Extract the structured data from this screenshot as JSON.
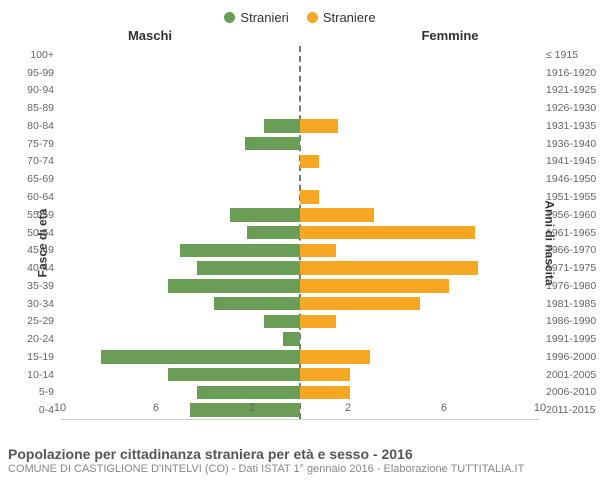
{
  "legend": {
    "male": "Stranieri",
    "female": "Straniere"
  },
  "headers": {
    "male": "Maschi",
    "female": "Femmine"
  },
  "axis_titles": {
    "left": "Fasce di età",
    "right": "Anni di nascita"
  },
  "colors": {
    "male": "#6a9e57",
    "female": "#f5a623",
    "background": "#ffffff",
    "grid": "#cccccc",
    "centerline": "#777777"
  },
  "chart": {
    "type": "population-pyramid",
    "xmax": 10,
    "xticks_left": [
      10,
      6,
      2
    ],
    "xticks_right": [
      2,
      6,
      10
    ],
    "age_bands": [
      {
        "age": "100+",
        "birth": "≤ 1915",
        "male": 0,
        "female": 0
      },
      {
        "age": "95-99",
        "birth": "1916-1920",
        "male": 0,
        "female": 0
      },
      {
        "age": "90-94",
        "birth": "1921-1925",
        "male": 0,
        "female": 0
      },
      {
        "age": "85-89",
        "birth": "1926-1930",
        "male": 0,
        "female": 0
      },
      {
        "age": "80-84",
        "birth": "1931-1935",
        "male": 1.5,
        "female": 1.6
      },
      {
        "age": "75-79",
        "birth": "1936-1940",
        "male": 2.3,
        "female": 0
      },
      {
        "age": "70-74",
        "birth": "1941-1945",
        "male": 0,
        "female": 0.8
      },
      {
        "age": "65-69",
        "birth": "1946-1950",
        "male": 0,
        "female": 0
      },
      {
        "age": "60-64",
        "birth": "1951-1955",
        "male": 0,
        "female": 0.8
      },
      {
        "age": "55-59",
        "birth": "1956-1960",
        "male": 2.9,
        "female": 3.1
      },
      {
        "age": "50-54",
        "birth": "1961-1965",
        "male": 2.2,
        "female": 7.3
      },
      {
        "age": "45-49",
        "birth": "1966-1970",
        "male": 5.0,
        "female": 1.5
      },
      {
        "age": "40-44",
        "birth": "1971-1975",
        "male": 4.3,
        "female": 7.4
      },
      {
        "age": "35-39",
        "birth": "1976-1980",
        "male": 5.5,
        "female": 6.2
      },
      {
        "age": "30-34",
        "birth": "1981-1985",
        "male": 3.6,
        "female": 5.0
      },
      {
        "age": "25-29",
        "birth": "1986-1990",
        "male": 1.5,
        "female": 1.5
      },
      {
        "age": "20-24",
        "birth": "1991-1995",
        "male": 0.7,
        "female": 0
      },
      {
        "age": "15-19",
        "birth": "1996-2000",
        "male": 8.3,
        "female": 2.9
      },
      {
        "age": "10-14",
        "birth": "2001-2005",
        "male": 5.5,
        "female": 2.1
      },
      {
        "age": "5-9",
        "birth": "2006-2010",
        "male": 4.3,
        "female": 2.1
      },
      {
        "age": "0-4",
        "birth": "2011-2015",
        "male": 4.6,
        "female": 0
      }
    ]
  },
  "footer": {
    "title": "Popolazione per cittadinanza straniera per età e sesso - 2016",
    "subtitle": "COMUNE DI CASTIGLIONE D'INTELVI (CO) - Dati ISTAT 1° gennaio 2016 - Elaborazione TUTTITALIA.IT"
  },
  "typography": {
    "legend_fontsize": 13,
    "header_fontsize": 13,
    "ylabel_fontsize": 10.5,
    "xtick_fontsize": 11,
    "axis_title_fontsize": 12,
    "title_fontsize": 14,
    "subtitle_fontsize": 11
  }
}
